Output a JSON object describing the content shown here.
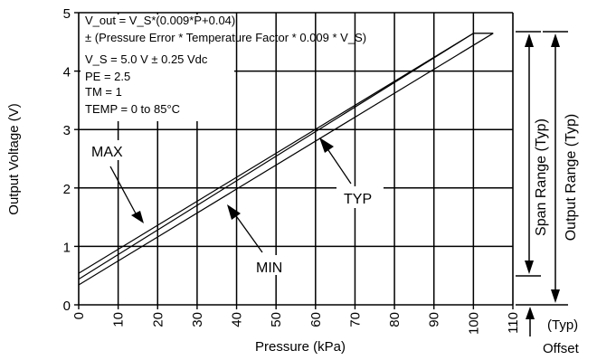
{
  "chart_data": {
    "type": "line",
    "xlabel": "Pressure (kPa)",
    "ylabel": "Output Voltage (V)",
    "xlim": [
      0,
      110
    ],
    "ylim": [
      0,
      5
    ],
    "x_ticks": [
      "0",
      "10",
      "20",
      "30",
      "40",
      "50",
      "60",
      "70",
      "80",
      "90",
      "100",
      "110"
    ],
    "y_ticks": [
      "0",
      "1",
      "2",
      "3",
      "4",
      "5"
    ],
    "grid": true,
    "annotations": {
      "formula": "V_out = V_S*(0.009*P+0.04)",
      "error": "± (Pressure Error * Temperature Factor * 0.009 * V_S)",
      "supply": "V_S = 5.0 V ± 0.25 Vdc",
      "pe": "PE = 2.5",
      "tm": "TM = 1",
      "temp": "TEMP = 0 to 85°C",
      "max_label": "MAX",
      "typ_label": "TYP",
      "min_label": "MIN",
      "span_label": "Span Range (Typ)",
      "output_label": "Output Range (Typ)",
      "offset_typ": "(Typ)",
      "offset_label": "Offset"
    },
    "series": [
      {
        "name": "MAX",
        "x": [
          0,
          100,
          105
        ],
        "y": [
          0.54,
          4.6475,
          4.6475
        ]
      },
      {
        "name": "TYP",
        "x": [
          0,
          100,
          105
        ],
        "y": [
          0.44,
          4.6475,
          4.6475
        ]
      },
      {
        "name": "MIN",
        "x": [
          0,
          105
        ],
        "y": [
          0.34,
          4.6475
        ]
      }
    ]
  }
}
